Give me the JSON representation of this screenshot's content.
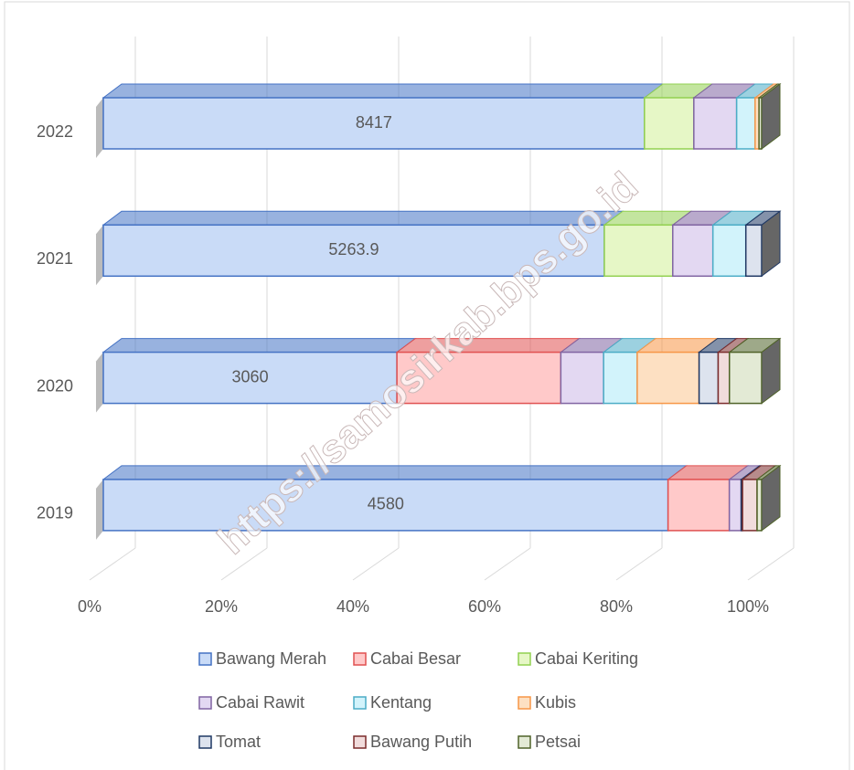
{
  "chart_data": {
    "type": "stacked_bar_100",
    "orientation": "horizontal",
    "categories": [
      "2019",
      "2020",
      "2021",
      "2022"
    ],
    "series": [
      {
        "name": "Bawang Merah",
        "color": "#4472c4",
        "fill": "#c9dbf7",
        "show_labels": true,
        "values": [
          4580,
          3060,
          5263.9,
          8417
        ]
      },
      {
        "name": "Cabai Besar",
        "color": "#e05050",
        "fill": "#ffc9c9",
        "values": [
          497,
          1708,
          0,
          0
        ]
      },
      {
        "name": "Cabai Keriting",
        "color": "#92d050",
        "fill": "#e6f7c6",
        "values": [
          0,
          0,
          719,
          768
        ]
      },
      {
        "name": "Cabai Rawit",
        "color": "#8064a2",
        "fill": "#e3d8f2",
        "values": [
          96,
          446,
          422,
          666
        ]
      },
      {
        "name": "Kentang",
        "color": "#4bacc6",
        "fill": "#d2f3fb",
        "values": [
          0,
          350,
          346,
          287
        ]
      },
      {
        "name": "Kubis",
        "color": "#f79646",
        "fill": "#fde0c2",
        "values": [
          0,
          645,
          0,
          61
        ]
      },
      {
        "name": "Tomat",
        "color": "#1f3864",
        "fill": "#dde3ee",
        "values": [
          11,
          199,
          166,
          0
        ]
      },
      {
        "name": "Bawang Putih",
        "color": "#7b2c2c",
        "fill": "#f1dcdc",
        "values": [
          118,
          117,
          0,
          0
        ]
      },
      {
        "name": "Petsai",
        "color": "#4f6228",
        "fill": "#e3ead5",
        "values": [
          37,
          336,
          0,
          41
        ]
      }
    ],
    "xlim": [
      0,
      100
    ],
    "xticks": [
      {
        "value": 0,
        "label": "0%"
      },
      {
        "value": 20,
        "label": "20%"
      },
      {
        "value": 40,
        "label": "40%"
      },
      {
        "value": 60,
        "label": "60%"
      },
      {
        "value": 80,
        "label": "80%"
      },
      {
        "value": 100,
        "label": "100%"
      }
    ],
    "grid": true,
    "legend": "bottom",
    "watermark": "https://samosirkab.bps.go.id"
  }
}
